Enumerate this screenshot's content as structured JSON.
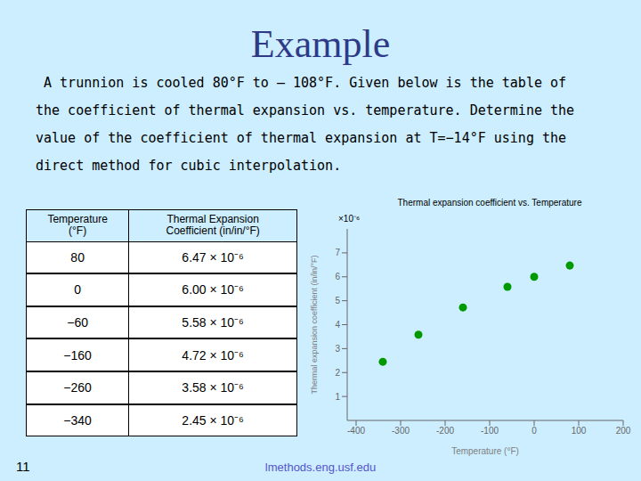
{
  "title": "Example",
  "title_color": "#2E3A87",
  "background_color": "#CCEEFF",
  "text_lines": [
    " A trunnion is cooled 80°F to – 108°F. Given below is the table of",
    "the coefficient of thermal expansion vs. temperature. Determine the",
    "value of the coefficient of thermal expansion at T=−14°F using the",
    "direct method for cubic interpolation."
  ],
  "table": {
    "headers": [
      "Temperature\n(°F)",
      "Thermal Expansion\nCoefficient (in/in/°F)"
    ],
    "rows": [
      [
        "80",
        "6.47 × 10⁻⁶"
      ],
      [
        "0",
        "6.00 × 10⁻⁶"
      ],
      [
        "−60",
        "5.58 × 10⁻⁶"
      ],
      [
        "−160",
        "4.72 × 10⁻⁶"
      ],
      [
        "−260",
        "3.58 × 10⁻⁶"
      ],
      [
        "−340",
        "2.45 × 10⁻⁶"
      ]
    ],
    "header_color": "#CCEEFF",
    "cell_color": "#FFFFFF"
  },
  "footer": "lmethods.eng.usf.edu",
  "footer_color": "#5555CC",
  "page_number": "11",
  "chart_data": {
    "type": "scatter",
    "title": "Thermal expansion coefficient vs. Temperature",
    "x_label": "Temperature (°F)",
    "y_label": "Thermal expansion coefficient (in/in/°F)",
    "annotations": [
      "×10⁻⁶"
    ],
    "x": [
      80,
      0,
      -60,
      -160,
      -260,
      -340
    ],
    "values": [
      6.47e-06,
      6e-06,
      5.58e-06,
      4.72e-06,
      3.58e-06,
      2.45e-06
    ],
    "color": "#009900",
    "marker": "circle",
    "xlim": [
      -420,
      200
    ],
    "xticks": [
      -400,
      -300,
      -200,
      -100,
      0,
      100,
      200
    ],
    "ylim": [
      0,
      8e-06
    ],
    "yticks": [
      {
        "value": 1e-06,
        "label": "1"
      },
      {
        "value": 2e-06,
        "label": "2"
      },
      {
        "value": 3e-06,
        "label": "3"
      },
      {
        "value": 4e-06,
        "label": "4"
      },
      {
        "value": 5e-06,
        "label": "5"
      },
      {
        "value": 6e-06,
        "label": "6"
      },
      {
        "value": 7e-06,
        "label": "7"
      }
    ],
    "grid": false
  }
}
